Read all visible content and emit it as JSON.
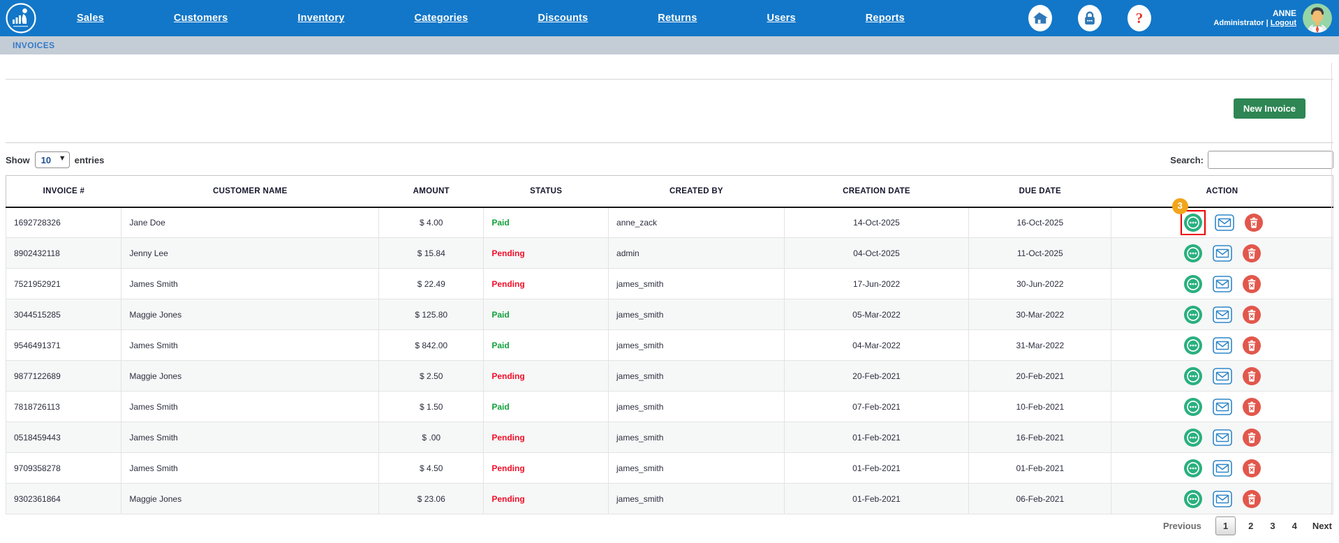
{
  "nav": {
    "items": [
      "Sales",
      "Customers",
      "Inventory",
      "Categories",
      "Discounts",
      "Returns",
      "Users",
      "Reports"
    ],
    "icons": [
      "home-icon",
      "lock-icon",
      "help-icon"
    ],
    "help_glyph": "?",
    "user_name": "ANNE",
    "user_role": "Administrator",
    "logout_label": "Logout"
  },
  "breadcrumb": "INVOICES",
  "toolbar": {
    "new_invoice_label": "New Invoice"
  },
  "table_controls": {
    "show_label": "Show",
    "page_size": "10",
    "entries_label": "entries",
    "search_label": "Search:",
    "search_value": ""
  },
  "table": {
    "columns": [
      "INVOICE #",
      "CUSTOMER NAME",
      "AMOUNT",
      "STATUS",
      "CREATED BY",
      "CREATION DATE",
      "DUE DATE",
      "ACTION"
    ],
    "rows": [
      {
        "invoice": "1692728326",
        "customer": "Jane Doe",
        "amount": "$ 4.00",
        "status": "Paid",
        "created_by": "anne_zack",
        "creation_date": "14-Oct-2025",
        "due_date": "16-Oct-2025",
        "badge": "3",
        "highlighted": true
      },
      {
        "invoice": "8902432118",
        "customer": "Jenny Lee",
        "amount": "$ 15.84",
        "status": "Pending",
        "created_by": "admin",
        "creation_date": "04-Oct-2025",
        "due_date": "11-Oct-2025"
      },
      {
        "invoice": "7521952921",
        "customer": "James Smith",
        "amount": "$ 22.49",
        "status": "Pending",
        "created_by": "james_smith",
        "creation_date": "17-Jun-2022",
        "due_date": "30-Jun-2022"
      },
      {
        "invoice": "3044515285",
        "customer": "Maggie Jones",
        "amount": "$ 125.80",
        "status": "Paid",
        "created_by": "james_smith",
        "creation_date": "05-Mar-2022",
        "due_date": "30-Mar-2022"
      },
      {
        "invoice": "9546491371",
        "customer": "James Smith",
        "amount": "$ 842.00",
        "status": "Paid",
        "created_by": "james_smith",
        "creation_date": "04-Mar-2022",
        "due_date": "31-Mar-2022"
      },
      {
        "invoice": "9877122689",
        "customer": "Maggie Jones",
        "amount": "$ 2.50",
        "status": "Pending",
        "created_by": "james_smith",
        "creation_date": "20-Feb-2021",
        "due_date": "20-Feb-2021"
      },
      {
        "invoice": "7818726113",
        "customer": "James Smith",
        "amount": "$ 1.50",
        "status": "Paid",
        "created_by": "james_smith",
        "creation_date": "07-Feb-2021",
        "due_date": "10-Feb-2021"
      },
      {
        "invoice": "0518459443",
        "customer": "James Smith",
        "amount": "$ .00",
        "status": "Pending",
        "created_by": "james_smith",
        "creation_date": "01-Feb-2021",
        "due_date": "16-Feb-2021"
      },
      {
        "invoice": "9709358278",
        "customer": "James Smith",
        "amount": "$ 4.50",
        "status": "Pending",
        "created_by": "james_smith",
        "creation_date": "01-Feb-2021",
        "due_date": "01-Feb-2021"
      },
      {
        "invoice": "9302361864",
        "customer": "Maggie Jones",
        "amount": "$ 23.06",
        "status": "Pending",
        "created_by": "james_smith",
        "creation_date": "01-Feb-2021",
        "due_date": "06-Feb-2021"
      }
    ],
    "action_icons": [
      "more-actions-icon",
      "envelope-icon",
      "trash-icon"
    ]
  },
  "pagination": {
    "previous_label": "Previous",
    "pages": [
      "1",
      "2",
      "3",
      "4"
    ],
    "current_page": "1",
    "next_label": "Next"
  },
  "colors": {
    "nav_blue": "#1277c8",
    "breadcrumb_bg": "#c4cdd6",
    "breadcrumb_text": "#3579c8",
    "button_green": "#2d8653",
    "paid_green": "#12a13b",
    "pending_red": "#f40e28",
    "action_view_green": "#29b07e",
    "action_mail_blue": "#2e86c8",
    "action_delete_red": "#e2574c",
    "badge_orange": "#f2a51b",
    "highlight_red": "#ee0000"
  }
}
